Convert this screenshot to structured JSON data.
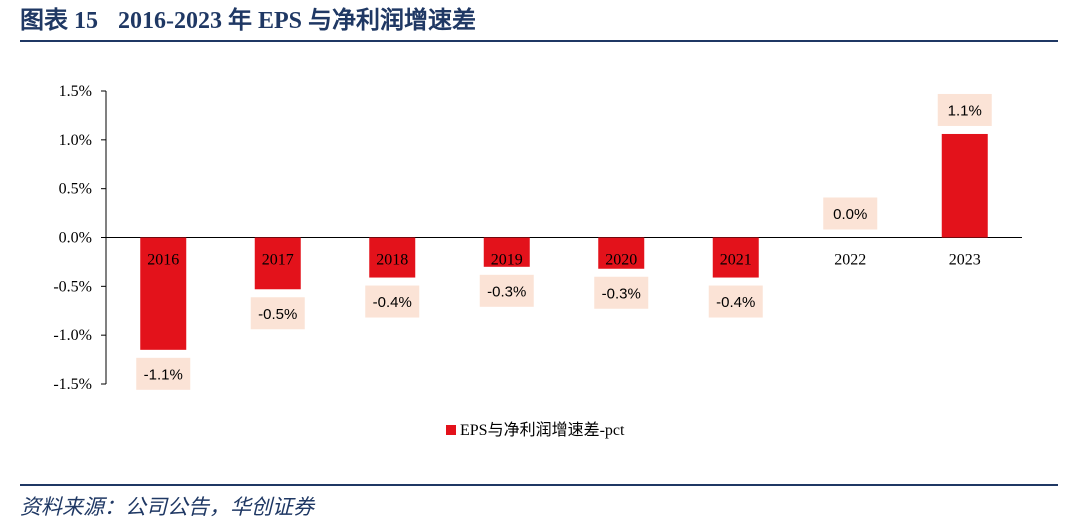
{
  "figure": {
    "label": "图表 15",
    "title": "2016-2023 年 EPS 与净利润增速差"
  },
  "source": "资料来源：公司公告，华创证券",
  "chart_data": {
    "type": "bar",
    "categories": [
      "2016",
      "2017",
      "2018",
      "2019",
      "2020",
      "2021",
      "2022",
      "2023"
    ],
    "series": [
      {
        "name": "EPS与净利润增速差-pct",
        "values": [
          -1.15,
          -0.53,
          -0.41,
          -0.3,
          -0.32,
          -0.41,
          0.0,
          1.06
        ],
        "labels": [
          "-1.1%",
          "-0.5%",
          "-0.4%",
          "-0.3%",
          "-0.3%",
          "-0.4%",
          "0.0%",
          "1.1%"
        ],
        "color": "#e3121b"
      }
    ],
    "ylim": [
      -1.5,
      1.5
    ],
    "ytick_values": [
      1.5,
      1.0,
      0.5,
      0.0,
      -0.5,
      -1.0,
      -1.5
    ],
    "ytick_labels": [
      "1.5%",
      "1.0%",
      "0.5%",
      "0.0%",
      "-0.5%",
      "-1.0%",
      "-1.5%"
    ],
    "label_background": "#fbe3d6",
    "legend_position": "bottom",
    "grid": false
  }
}
